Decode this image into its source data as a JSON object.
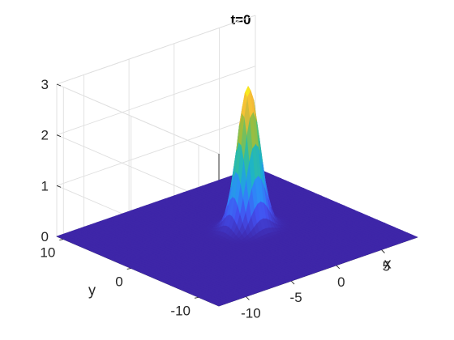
{
  "chart_data": {
    "type": "surface",
    "title": "t=0",
    "function": "z = 2.8 * exp(-(x^2 + y^2) / 2)",
    "peak": {
      "x": 0,
      "y": 0,
      "z": 2.8
    },
    "x": {
      "label": "x",
      "range": [
        -13,
        9
      ],
      "ticks": [
        -10,
        -5,
        0,
        5
      ],
      "tick_labels": [
        "-10",
        "-5",
        "0",
        "5"
      ]
    },
    "y": {
      "label": "y",
      "range": [
        -13,
        11
      ],
      "ticks": [
        -10,
        0,
        10
      ],
      "tick_labels": [
        "-10",
        "0",
        "10"
      ]
    },
    "z": {
      "label": "",
      "range": [
        0,
        3
      ],
      "ticks": [
        0,
        1,
        2,
        3
      ],
      "tick_labels": [
        "0",
        "1",
        "2",
        "3"
      ]
    },
    "colormap": "parula",
    "colormap_stops": [
      "#3e26a8",
      "#4351f1",
      "#2d8cf8",
      "#1bb2cc",
      "#3dc289",
      "#a3bd3a",
      "#f5b93a",
      "#f9fb15"
    ],
    "grid": true,
    "view": "3d-box"
  }
}
